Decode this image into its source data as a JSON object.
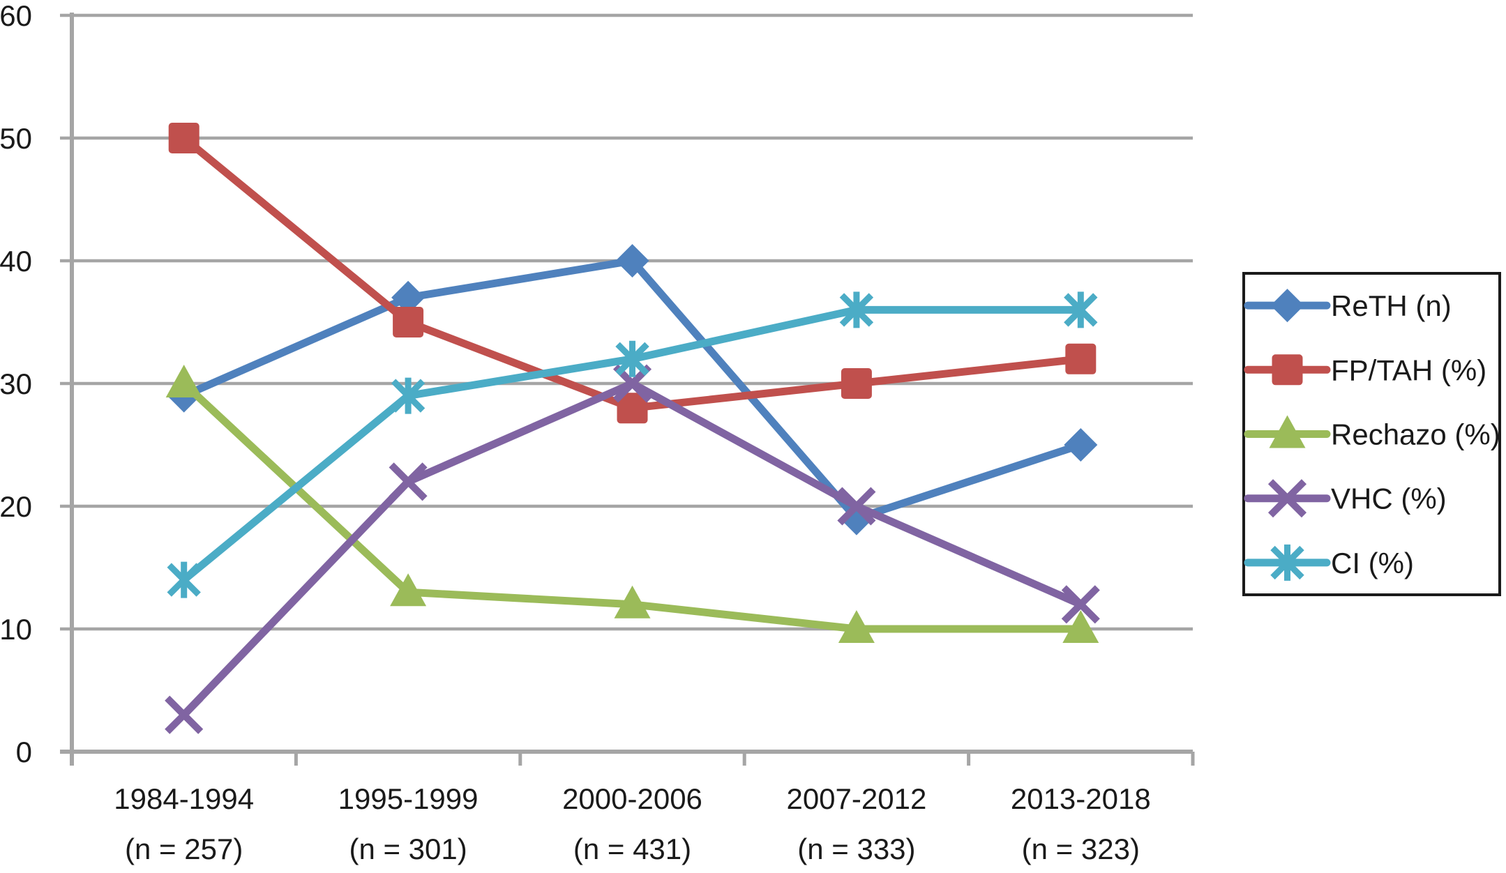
{
  "figure": {
    "background": "#ffffff",
    "text_color": "#1a1a1a",
    "gridline_color": "#a5a5a5",
    "axis_color": "#a5a5a5",
    "legend_border_color": "#1a1a1a"
  },
  "chart_data": {
    "type": "line",
    "title": "",
    "xlabel": "",
    "ylabel": "",
    "grid": true,
    "legend_position": "right",
    "y_axis": {
      "min": 0,
      "max": 60,
      "step": 10,
      "tick_labels": [
        "0",
        "10",
        "20",
        "30",
        "40",
        "50",
        "60"
      ]
    },
    "categories": [
      {
        "label": "1984-1994",
        "sub": "(n = 257)"
      },
      {
        "label": "1995-1999",
        "sub": "(n = 301)"
      },
      {
        "label": "2000-2006",
        "sub": "(n = 431)"
      },
      {
        "label": "2007-2012",
        "sub": "(n = 333)"
      },
      {
        "label": "2013-2018",
        "sub": "(n = 323)"
      }
    ],
    "series": [
      {
        "name": "ReTH (n)",
        "color": "#4F81BD",
        "marker": "diamond",
        "values": [
          29,
          37,
          40,
          19,
          25
        ]
      },
      {
        "name": "FP/TAH (%)",
        "color": "#C0504D",
        "marker": "square",
        "values": [
          50,
          35,
          28,
          30,
          32
        ]
      },
      {
        "name": "Rechazo (%)",
        "color": "#9BBB59",
        "marker": "triangle",
        "values": [
          30,
          13,
          12,
          10,
          10
        ]
      },
      {
        "name": "VHC (%)",
        "color": "#8064A2",
        "marker": "x",
        "values": [
          3,
          22,
          30,
          20,
          12
        ]
      },
      {
        "name": "CI (%)",
        "color": "#4BACC6",
        "marker": "asterisk",
        "values": [
          14,
          29,
          32,
          36,
          36
        ]
      }
    ]
  }
}
